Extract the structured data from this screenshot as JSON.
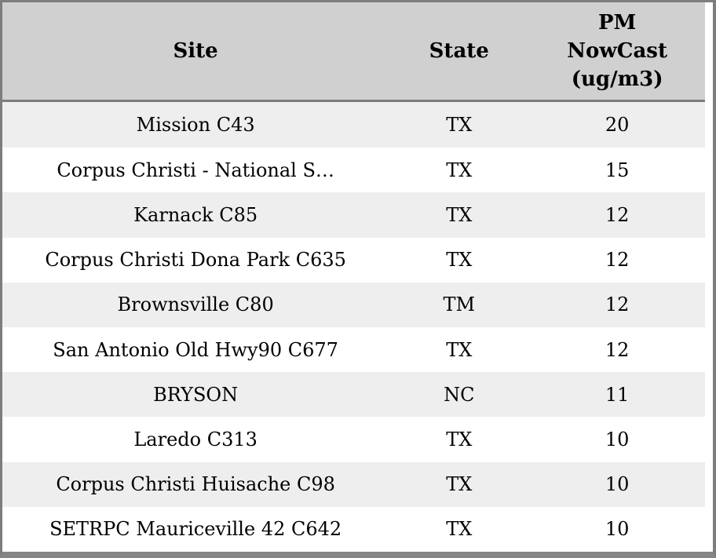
{
  "table": {
    "columns": [
      {
        "id": "site",
        "label": "Site"
      },
      {
        "id": "state",
        "label": "State"
      },
      {
        "id": "pm",
        "label": "PM NowCast (ug/m3)",
        "lines": [
          "PM",
          "NowCast",
          "(ug/m3)"
        ]
      }
    ],
    "rows": [
      {
        "site": "Mission C43",
        "state": "TX",
        "pm": "20"
      },
      {
        "site": "Corpus Christi - National S…",
        "state": "TX",
        "pm": "15"
      },
      {
        "site": "Karnack C85",
        "state": "TX",
        "pm": "12"
      },
      {
        "site": "Corpus Christi Dona Park C635",
        "state": "TX",
        "pm": "12"
      },
      {
        "site": "Brownsville C80",
        "state": "TM",
        "pm": "12"
      },
      {
        "site": "San Antonio Old Hwy90 C677",
        "state": "TX",
        "pm": "12"
      },
      {
        "site": "BRYSON",
        "state": "NC",
        "pm": "11"
      },
      {
        "site": "Laredo C313",
        "state": "TX",
        "pm": "10"
      },
      {
        "site": "Corpus Christi Huisache C98",
        "state": "TX",
        "pm": "10"
      },
      {
        "site": "SETRPC Mauriceville 42 C642",
        "state": "TX",
        "pm": "10"
      }
    ]
  },
  "colors": {
    "frame_border": "#7d7d7d",
    "bottom_border": "#858585",
    "header_bg": "#d0d0d0",
    "row_alt_bg": "#eeeeee",
    "row_bg": "#ffffff",
    "text": "#000000"
  },
  "chart_data": {
    "type": "table",
    "title": "",
    "columns": [
      "Site",
      "State",
      "PM NowCast (ug/m3)"
    ],
    "rows": [
      [
        "Mission C43",
        "TX",
        20
      ],
      [
        "Corpus Christi - National S…",
        "TX",
        15
      ],
      [
        "Karnack C85",
        "TX",
        12
      ],
      [
        "Corpus Christi Dona Park C635",
        "TX",
        12
      ],
      [
        "Brownsville C80",
        "TM",
        12
      ],
      [
        "San Antonio Old Hwy90 C677",
        "TX",
        12
      ],
      [
        "BRYSON",
        "NC",
        11
      ],
      [
        "Laredo C313",
        "TX",
        10
      ],
      [
        "Corpus Christi Huisache C98",
        "TX",
        10
      ],
      [
        "SETRPC Mauriceville 42 C642",
        "TX",
        10
      ]
    ]
  }
}
